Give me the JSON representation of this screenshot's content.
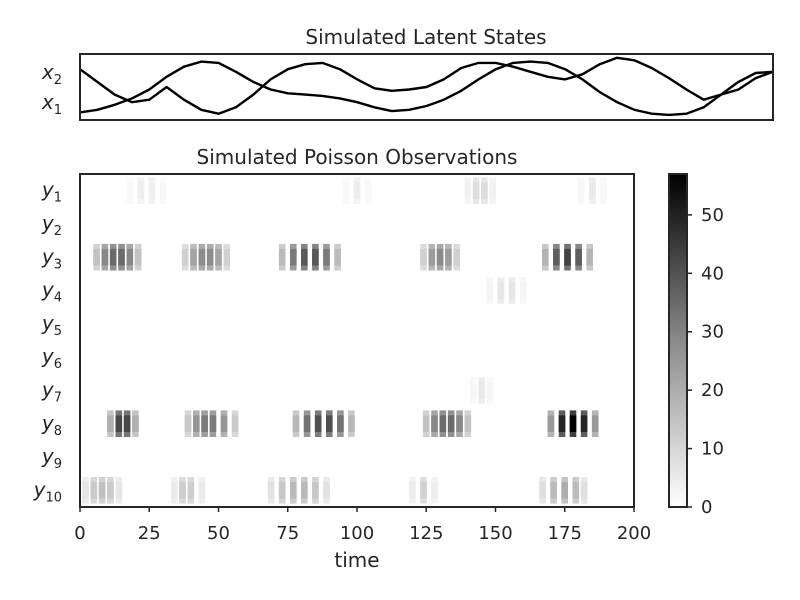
{
  "chart_data": [
    {
      "type": "line",
      "title": "Simulated Latent States",
      "y_tick_labels": [
        {
          "base": "x",
          "sub": "2"
        },
        {
          "base": "x",
          "sub": "1"
        }
      ],
      "xlim": [
        0,
        200
      ],
      "ylim": [
        -1.3,
        1.3
      ],
      "line_color": "#000000",
      "series": [
        {
          "x": [
            0,
            5,
            10,
            15,
            20,
            25,
            30,
            35,
            40,
            45,
            50,
            55,
            60,
            65,
            70,
            75,
            80,
            85,
            90,
            95,
            100,
            105,
            110,
            115,
            120,
            125,
            130,
            135,
            140,
            145,
            150,
            155,
            160,
            165,
            170,
            175,
            180,
            185,
            190,
            195,
            200
          ],
          "values": [
            -1.0,
            -0.9,
            -0.7,
            -0.45,
            -0.1,
            0.4,
            0.8,
            1.0,
            0.95,
            0.6,
            0.2,
            -0.1,
            -0.25,
            -0.3,
            -0.35,
            -0.45,
            -0.6,
            -0.8,
            -0.95,
            -0.9,
            -0.75,
            -0.5,
            -0.15,
            0.3,
            0.7,
            0.95,
            1.0,
            0.95,
            0.7,
            0.3,
            -0.2,
            -0.6,
            -0.9,
            -1.05,
            -1.1,
            -1.05,
            -0.8,
            -0.3,
            0.2,
            0.55,
            0.6
          ]
        },
        {
          "x": [
            0,
            5,
            10,
            15,
            20,
            25,
            30,
            35,
            40,
            45,
            50,
            55,
            60,
            65,
            70,
            75,
            80,
            85,
            90,
            95,
            100,
            105,
            110,
            115,
            120,
            125,
            130,
            135,
            140,
            145,
            150,
            155,
            160,
            165,
            170,
            175,
            180,
            185,
            190,
            195,
            200
          ],
          "values": [
            0.7,
            0.2,
            -0.3,
            -0.6,
            -0.5,
            0.0,
            -0.5,
            -0.9,
            -1.05,
            -0.8,
            -0.3,
            0.3,
            0.7,
            0.9,
            0.95,
            0.7,
            0.3,
            -0.05,
            -0.15,
            -0.1,
            0.0,
            0.3,
            0.75,
            0.95,
            0.95,
            0.8,
            0.6,
            0.4,
            0.3,
            0.5,
            0.9,
            1.15,
            1.05,
            0.75,
            0.35,
            -0.1,
            -0.5,
            -0.3,
            -0.1,
            0.35,
            0.6
          ]
        }
      ]
    },
    {
      "type": "heatmap",
      "title": "Simulated Poisson Observations",
      "xlabel": "time",
      "x_ticks": [
        0,
        25,
        50,
        75,
        100,
        125,
        150,
        175,
        200
      ],
      "xlim": [
        0,
        200
      ],
      "y_tick_labels": [
        {
          "base": "y",
          "sub": "1"
        },
        {
          "base": "y",
          "sub": "2"
        },
        {
          "base": "y",
          "sub": "3"
        },
        {
          "base": "y",
          "sub": "4"
        },
        {
          "base": "y",
          "sub": "5"
        },
        {
          "base": "y",
          "sub": "6"
        },
        {
          "base": "y",
          "sub": "7"
        },
        {
          "base": "y",
          "sub": "8"
        },
        {
          "base": "y",
          "sub": "9"
        },
        {
          "base": "y",
          "sub": "10"
        }
      ],
      "colormap": "Greys",
      "color_range": [
        0,
        57
      ],
      "colorbar_ticks": [
        0,
        10,
        20,
        30,
        40,
        50
      ],
      "bursts": [
        {
          "row": 1,
          "x": [
            18,
            22,
            26,
            30
          ],
          "peak": 4
        },
        {
          "row": 1,
          "x": [
            96,
            100,
            104
          ],
          "peak": 4
        },
        {
          "row": 1,
          "x": [
            140,
            143,
            146,
            149
          ],
          "peak": 8
        },
        {
          "row": 1,
          "x": [
            181,
            185,
            189
          ],
          "peak": 5
        },
        {
          "row": 3,
          "x": [
            6,
            9,
            12,
            15,
            18,
            21
          ],
          "peak": 34
        },
        {
          "row": 3,
          "x": [
            38,
            41,
            44,
            47,
            50,
            53
          ],
          "peak": 26
        },
        {
          "row": 3,
          "x": [
            73,
            77,
            81,
            85,
            89,
            93
          ],
          "peak": 38
        },
        {
          "row": 3,
          "x": [
            124,
            127,
            130,
            133,
            136
          ],
          "peak": 26
        },
        {
          "row": 3,
          "x": [
            168,
            172,
            176,
            180,
            184
          ],
          "peak": 42
        },
        {
          "row": 4,
          "x": [
            148,
            152,
            156,
            160
          ],
          "peak": 6
        },
        {
          "row": 7,
          "x": [
            142,
            145,
            148
          ],
          "peak": 5
        },
        {
          "row": 8,
          "x": [
            11,
            14,
            17,
            20
          ],
          "peak": 44
        },
        {
          "row": 8,
          "x": [
            39,
            42,
            45,
            48,
            52,
            56
          ],
          "peak": 30
        },
        {
          "row": 8,
          "x": [
            78,
            82,
            86,
            90,
            94,
            98
          ],
          "peak": 40
        },
        {
          "row": 8,
          "x": [
            125,
            128,
            131,
            134,
            137,
            140
          ],
          "peak": 34
        },
        {
          "row": 8,
          "x": [
            170,
            174,
            178,
            182,
            186
          ],
          "peak": 57
        },
        {
          "row": 10,
          "x": [
            2,
            5,
            8,
            11,
            14
          ],
          "peak": 14
        },
        {
          "row": 10,
          "x": [
            34,
            37,
            40,
            44
          ],
          "peak": 12
        },
        {
          "row": 10,
          "x": [
            69,
            73,
            77,
            81,
            85,
            89
          ],
          "peak": 16
        },
        {
          "row": 10,
          "x": [
            120,
            124,
            128
          ],
          "peak": 10
        },
        {
          "row": 10,
          "x": [
            167,
            171,
            175,
            179,
            182
          ],
          "peak": 18
        }
      ]
    }
  ]
}
